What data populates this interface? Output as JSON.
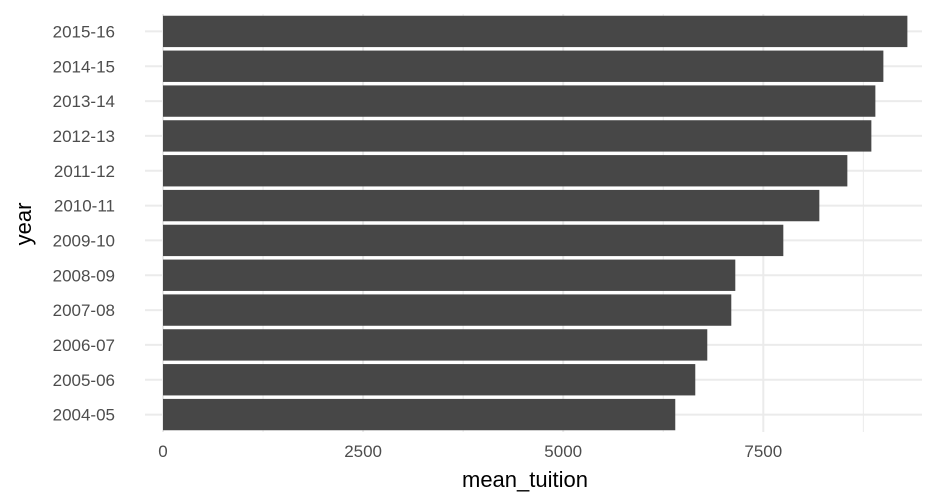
{
  "chart_data": {
    "type": "bar",
    "orientation": "horizontal",
    "title": "",
    "xlabel": "mean_tuition",
    "ylabel": "year",
    "categories": [
      "2004-05",
      "2005-06",
      "2006-07",
      "2007-08",
      "2008-09",
      "2009-10",
      "2010-11",
      "2011-12",
      "2012-13",
      "2013-14",
      "2014-15",
      "2015-16"
    ],
    "values": [
      6400,
      6650,
      6800,
      7100,
      7150,
      7750,
      8200,
      8550,
      8850,
      8900,
      9000,
      9300
    ],
    "xlim": [
      0,
      9750
    ],
    "xticks": [
      0,
      2500,
      5000,
      7500
    ],
    "xtick_labels": [
      "0",
      "2500",
      "5000",
      "7500"
    ],
    "grid": true,
    "bar_color": "#474747",
    "grid_color": "#ebebeb"
  }
}
